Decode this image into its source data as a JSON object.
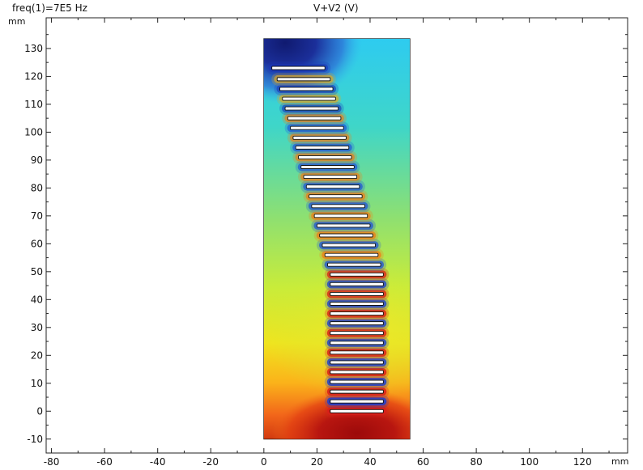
{
  "header": {
    "parameter": "freq(1)=7E5 Hz",
    "expression": "V+V2 (V)"
  },
  "chart_data": {
    "type": "heatmap",
    "title": "V+V2 (V)",
    "subtitle": "freq(1)=7E5 Hz",
    "x_unit": "mm",
    "y_unit": "mm",
    "xlim": [
      -82,
      137
    ],
    "ylim": [
      -15,
      141
    ],
    "x_ticks": [
      "-80",
      "-60",
      "-40",
      "-20",
      "0",
      "20",
      "40",
      "60",
      "80",
      "100",
      "120"
    ],
    "y_ticks": [
      "-10",
      "0",
      "10",
      "20",
      "30",
      "40",
      "50",
      "60",
      "70",
      "80",
      "90",
      "100",
      "110",
      "120",
      "130"
    ],
    "domain": {
      "x": [
        0,
        55
      ],
      "y": [
        -10,
        133.5
      ]
    },
    "colormap": "rainbow",
    "high_value_region": "bottom",
    "low_value_region": "top-left",
    "electrodes": [
      {
        "x0": 25,
        "x1": 45,
        "y": 0
      },
      {
        "x0": 25,
        "x1": 45,
        "y": 3.5
      },
      {
        "x0": 25,
        "x1": 45,
        "y": 7
      },
      {
        "x0": 25,
        "x1": 45,
        "y": 10.5
      },
      {
        "x0": 25,
        "x1": 45,
        "y": 14
      },
      {
        "x0": 25,
        "x1": 45,
        "y": 17.5
      },
      {
        "x0": 25,
        "x1": 45,
        "y": 21
      },
      {
        "x0": 25,
        "x1": 45,
        "y": 24.5
      },
      {
        "x0": 25,
        "x1": 45,
        "y": 28
      },
      {
        "x0": 25,
        "x1": 45,
        "y": 31.5
      },
      {
        "x0": 25,
        "x1": 45,
        "y": 35
      },
      {
        "x0": 25,
        "x1": 45,
        "y": 38.5
      },
      {
        "x0": 25,
        "x1": 45,
        "y": 42
      },
      {
        "x0": 25,
        "x1": 45,
        "y": 45.5
      },
      {
        "x0": 25,
        "x1": 45,
        "y": 49
      },
      {
        "x0": 24,
        "x1": 44,
        "y": 52.5
      },
      {
        "x0": 23,
        "x1": 43,
        "y": 56
      },
      {
        "x0": 22,
        "x1": 42,
        "y": 59.5
      },
      {
        "x0": 21,
        "x1": 41,
        "y": 63
      },
      {
        "x0": 20,
        "x1": 40,
        "y": 66.5
      },
      {
        "x0": 19,
        "x1": 39,
        "y": 70
      },
      {
        "x0": 18,
        "x1": 38,
        "y": 73.5
      },
      {
        "x0": 17,
        "x1": 37,
        "y": 77
      },
      {
        "x0": 16,
        "x1": 36,
        "y": 80.5
      },
      {
        "x0": 15,
        "x1": 35,
        "y": 84
      },
      {
        "x0": 14,
        "x1": 34,
        "y": 87.5
      },
      {
        "x0": 13,
        "x1": 33,
        "y": 91
      },
      {
        "x0": 12,
        "x1": 32,
        "y": 94.5
      },
      {
        "x0": 11,
        "x1": 31,
        "y": 98
      },
      {
        "x0": 10,
        "x1": 30,
        "y": 101.5
      },
      {
        "x0": 9,
        "x1": 29,
        "y": 105
      },
      {
        "x0": 8,
        "x1": 28,
        "y": 108.5
      },
      {
        "x0": 7,
        "x1": 27,
        "y": 112
      },
      {
        "x0": 6,
        "x1": 26,
        "y": 115.5
      },
      {
        "x0": 5,
        "x1": 25,
        "y": 119
      },
      {
        "x0": 3,
        "x1": 23,
        "y": 123
      }
    ]
  }
}
